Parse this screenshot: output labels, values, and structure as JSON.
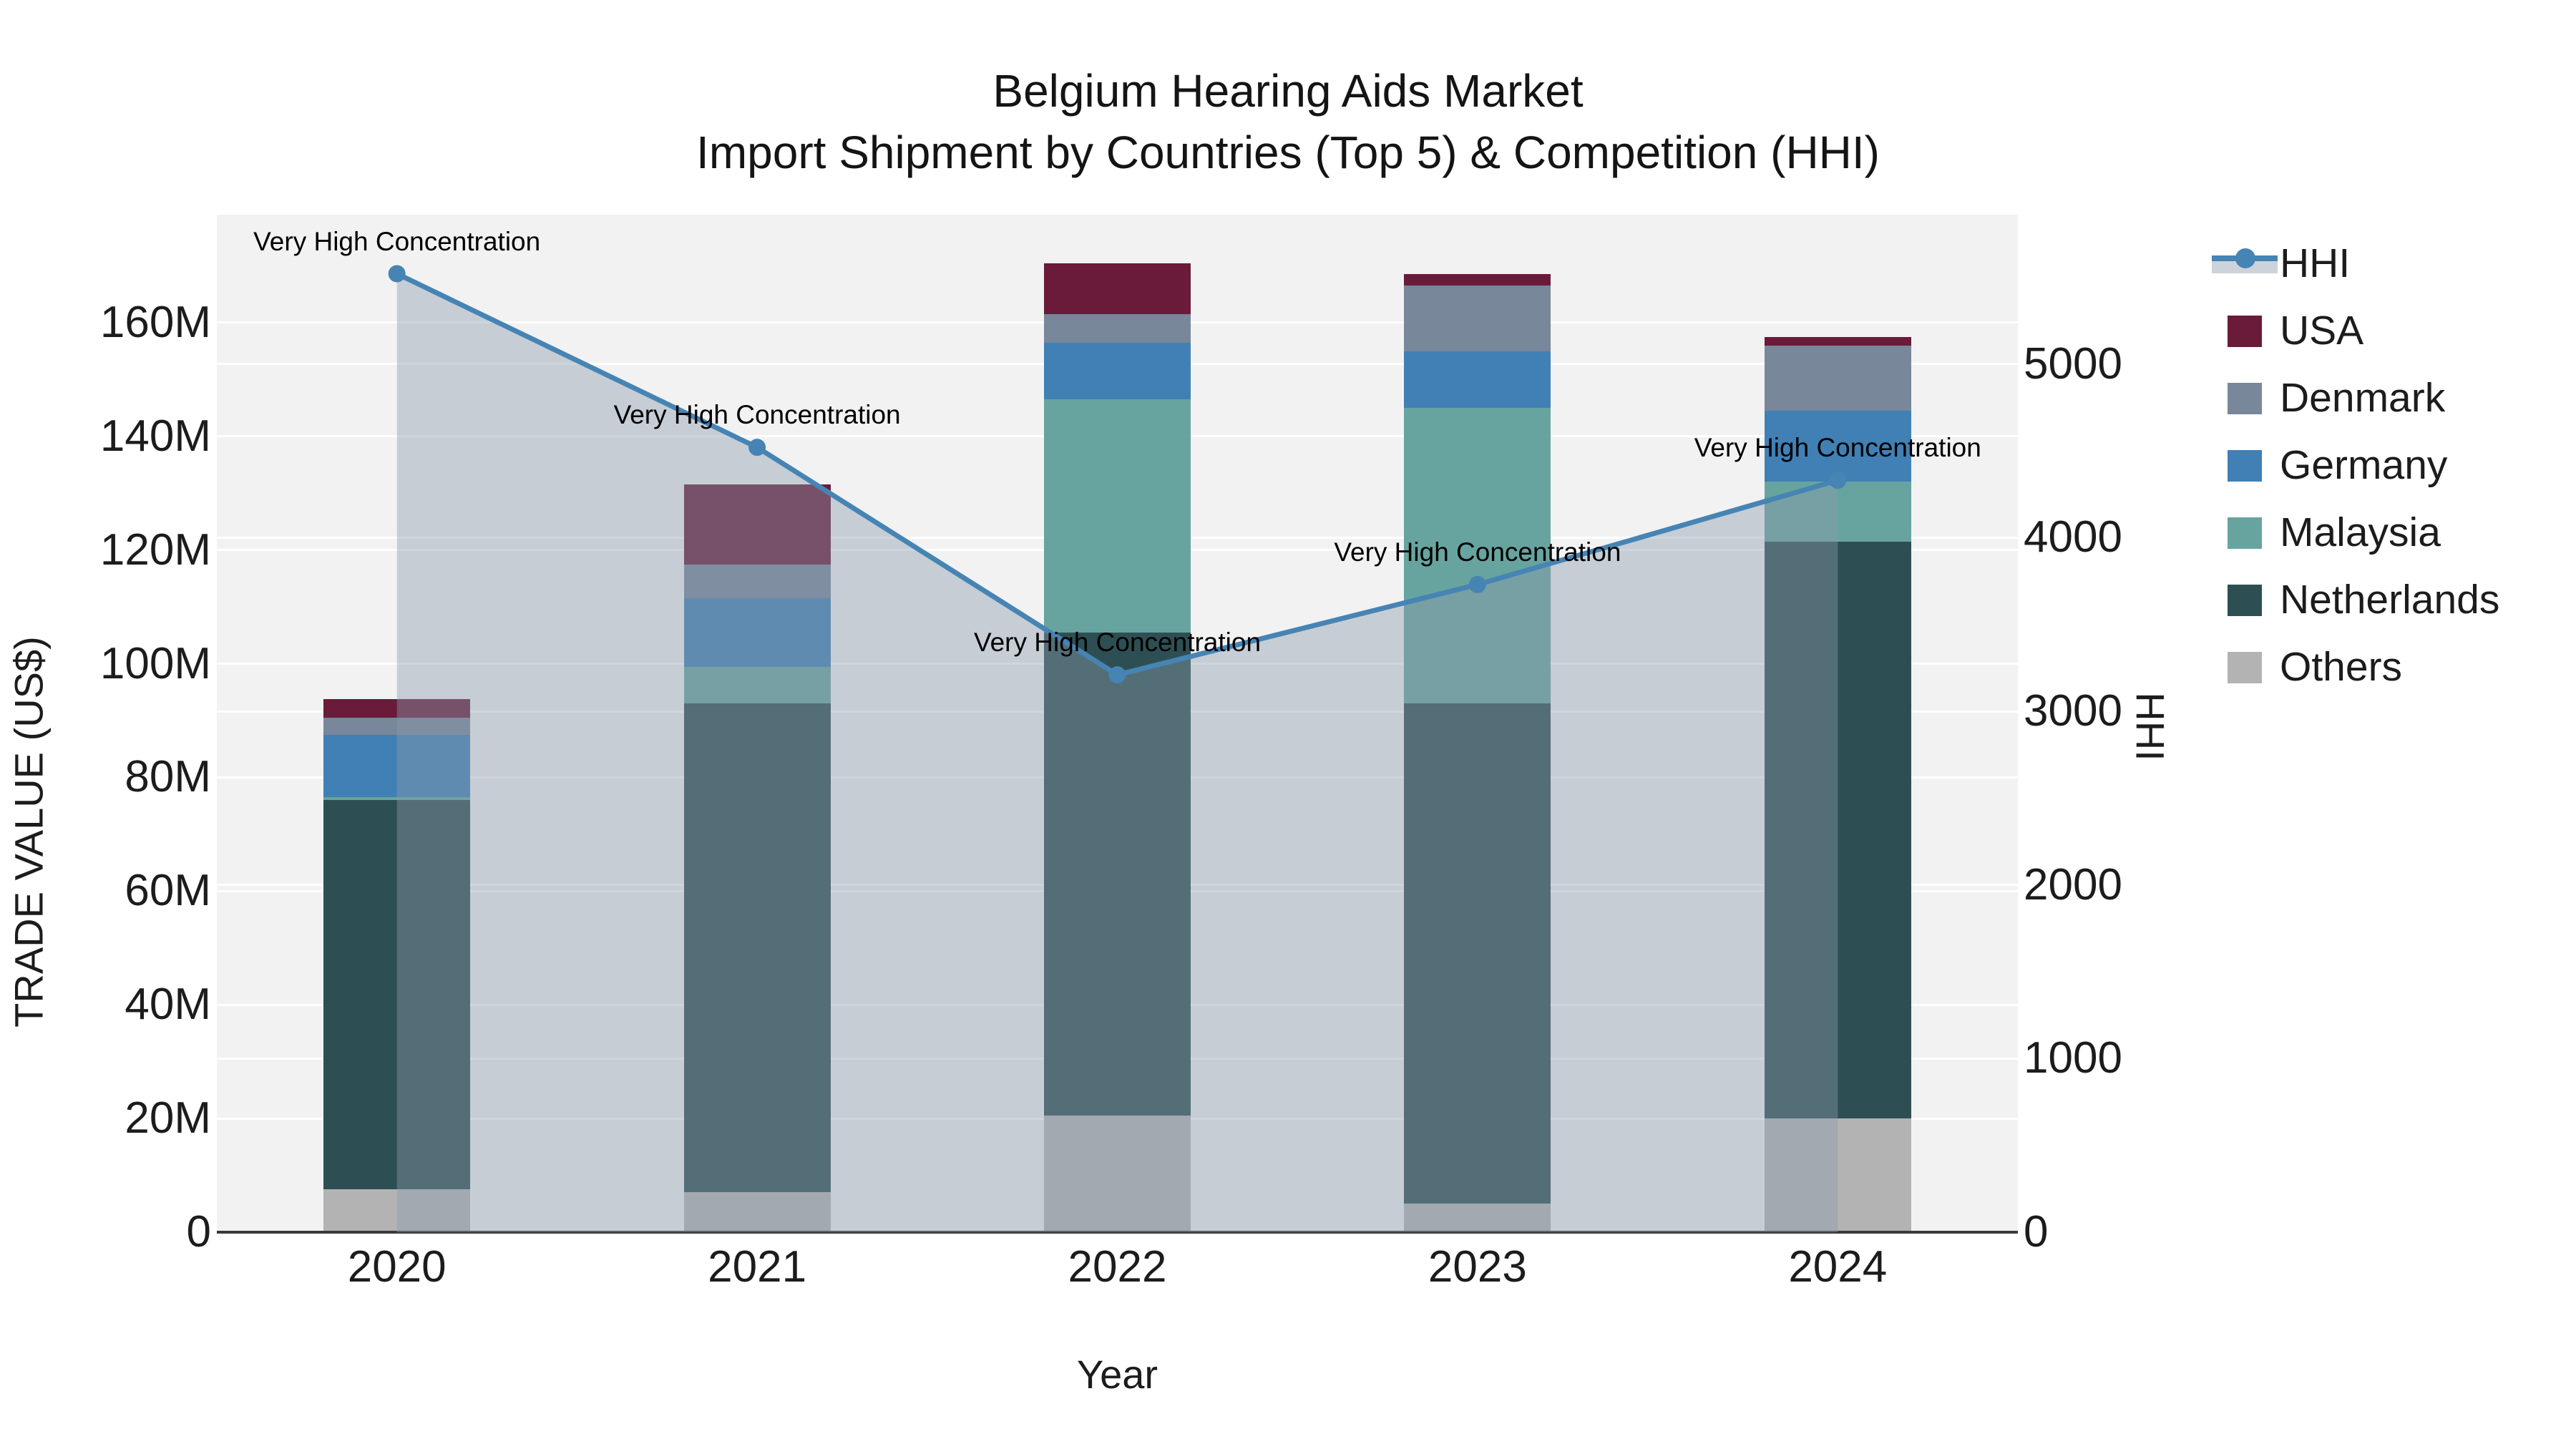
{
  "title": {
    "line1": "Belgium Hearing Aids Market",
    "line2": "Import Shipment by Countries (Top 5) & Competition (HHI)"
  },
  "colors": {
    "figure_bg": "#ffffff",
    "plot_bg": "#f2f2f3",
    "gridline": "#ffffff",
    "axis_line": "#3a3a3a",
    "hhi_line": "#4684b4",
    "hhi_area_fill": "rgba(138,154,172,0.42)",
    "usa": "#6a1b3a",
    "denmark": "#78879a",
    "germany": "#4180b4",
    "malaysia": "#68a49f",
    "netherlands": "#2d4f53",
    "others": "#b3b3b3"
  },
  "chart_data": {
    "type": "bar+line",
    "title": "Belgium Hearing Aids Market — Import Shipment by Countries (Top 5) & Competition (HHI)",
    "categories": [
      "2020",
      "2021",
      "2022",
      "2023",
      "2024"
    ],
    "stacked_bar_unit": "M US$",
    "series": [
      {
        "name": "Others",
        "color": "#b3b3b3",
        "values": [
          7.5,
          7,
          20.5,
          5,
          20
        ]
      },
      {
        "name": "Netherlands",
        "color": "#2d4f53",
        "values": [
          68.5,
          86,
          85,
          88,
          101.5
        ]
      },
      {
        "name": "Malaysia",
        "color": "#68a49f",
        "values": [
          0.5,
          6.5,
          41,
          52,
          10.5
        ]
      },
      {
        "name": "Germany",
        "color": "#4180b4",
        "values": [
          11,
          12,
          10,
          10,
          12.5
        ]
      },
      {
        "name": "Denmark",
        "color": "#78879a",
        "values": [
          3,
          6,
          5,
          11.5,
          11.5
        ]
      },
      {
        "name": "USA",
        "color": "#6a1b3a",
        "values": [
          3.3,
          14,
          9,
          2,
          1.5
        ]
      }
    ],
    "bar_totals": [
      93.8,
      131.5,
      170.5,
      168.5,
      157.5
    ],
    "line_series": {
      "name": "HHI",
      "color": "#4684b4",
      "values": [
        5520,
        4520,
        3210,
        3730,
        4330
      ]
    },
    "annotations": [
      {
        "x": "2020",
        "text": "Very High Concentration"
      },
      {
        "x": "2021",
        "text": "Very High Concentration"
      },
      {
        "x": "2022",
        "text": "Very High Concentration"
      },
      {
        "x": "2023",
        "text": "Very High Concentration"
      },
      {
        "x": "2024",
        "text": "Very High Concentration"
      }
    ],
    "y_left": {
      "title": "TRADE VALUE (US$)",
      "ticks": [
        "0",
        "20M",
        "40M",
        "60M",
        "80M",
        "100M",
        "120M",
        "140M",
        "160M"
      ],
      "tick_values": [
        0,
        20,
        40,
        60,
        80,
        100,
        120,
        140,
        160
      ],
      "max": 179
    },
    "y_right": {
      "title": "HHI",
      "ticks": [
        "0",
        "1000",
        "2000",
        "3000",
        "4000",
        "5000"
      ],
      "tick_values": [
        0,
        1000,
        2000,
        3000,
        4000,
        5000
      ],
      "max": 5860
    },
    "x": {
      "title": "Year"
    },
    "grid": "horizontal-only",
    "legend_position": "right",
    "legend": [
      {
        "name": "HHI",
        "type": "line"
      },
      {
        "name": "USA",
        "type": "swatch",
        "color": "#6a1b3a"
      },
      {
        "name": "Denmark",
        "type": "swatch",
        "color": "#78879a"
      },
      {
        "name": "Germany",
        "type": "swatch",
        "color": "#4180b4"
      },
      {
        "name": "Malaysia",
        "type": "swatch",
        "color": "#68a49f"
      },
      {
        "name": "Netherlands",
        "type": "swatch",
        "color": "#2d4f53"
      },
      {
        "name": "Others",
        "type": "swatch",
        "color": "#b3b3b3"
      }
    ]
  }
}
